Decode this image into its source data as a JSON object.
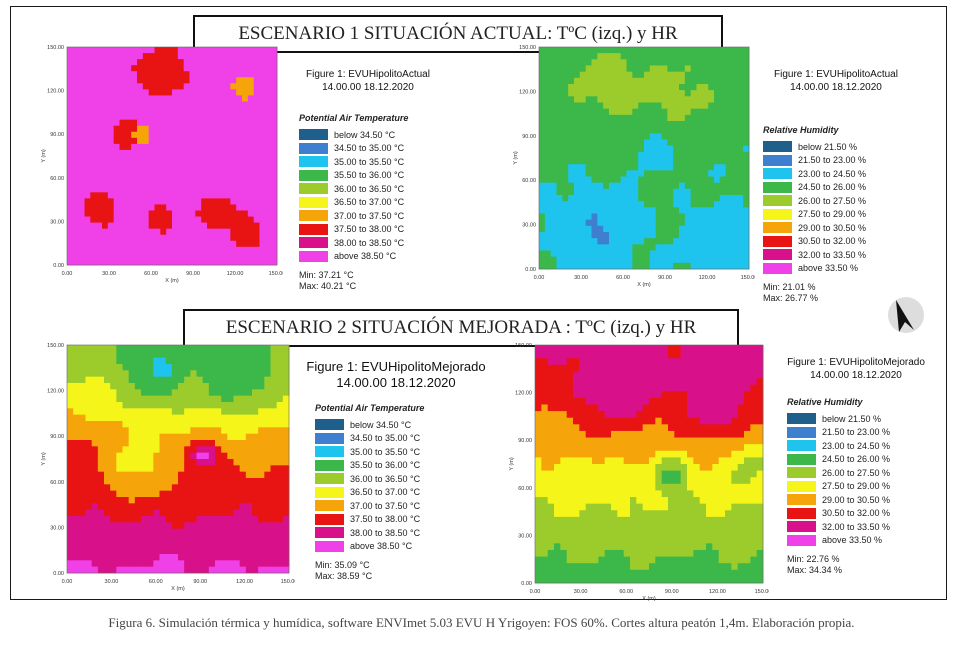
{
  "caption": "Figura 6. Simulación térmica y humídica, software ENVImet 5.03 EVU H Yrigoyen: FOS 60%. Cortes altura peatón 1,4m. Elaboración propia.",
  "scenario1": {
    "banner": "ESCENARIO 1 SITUACIÓN ACTUAL: TºC (izq.) y HR",
    "temp": {
      "title_line1": "Figure 1: EVUHipolitoActual",
      "title_line2": "14.00.00 18.12.2020",
      "legend_title": "Potential Air Temperature",
      "min": "Min: 37.21 °C",
      "max": "Max: 40.21 °C"
    },
    "hum": {
      "title_line1": "Figure 1: EVUHipolitoActual",
      "title_line2": "14.00.00 18.12.2020",
      "legend_title": "Relative Humidity",
      "min": "Min: 21.01 %",
      "max": "Max: 26.77 %"
    }
  },
  "scenario2": {
    "banner": "ESCENARIO 2 SITUACIÓN MEJORADA : TºC (izq.) y HR",
    "temp": {
      "title_line1": "Figure 1: EVUHipolitoMejorado",
      "title_line2": "14.00.00 18.12.2020",
      "legend_title": "Potential Air Temperature",
      "min": "Min: 35.09 °C",
      "max": "Max: 38.59 °C"
    },
    "hum": {
      "title_line1": "Figure 1: EVUHipolitoMejorado",
      "title_line2": "14.00.00 18.12.2020",
      "legend_title": "Relative Humidity",
      "min": "Min: 22.76 %",
      "max": "Max: 34.34 %"
    }
  },
  "legend_colors": [
    "#1f5f8b",
    "#3f7fd0",
    "#1ec3ee",
    "#3cb84a",
    "#9ccc2c",
    "#f5f51a",
    "#f5a50a",
    "#e81414",
    "#d8108a",
    "#f040e8"
  ],
  "temp_classes": [
    "below 34.50 °C",
    "34.50 to 35.00 °C",
    "35.00 to 35.50 °C",
    "35.50 to 36.00 °C",
    "36.00 to 36.50 °C",
    "36.50 to 37.00 °C",
    "37.00 to 37.50 °C",
    "37.50 to 38.00 °C",
    "38.00 to 38.50 °C",
    "above 38.50 °C"
  ],
  "hum_classes": [
    "below 21.50 %",
    "21.50 to 23.00 %",
    "23.00 to 24.50 %",
    "24.50 to 26.00 %",
    "26.00 to 27.50 %",
    "27.50 to 29.00 %",
    "29.00 to 30.50 %",
    "30.50 to 32.00 %",
    "32.00 to 33.50 %",
    "above 33.50 %"
  ],
  "axes": {
    "x_ticks": [
      "0.00",
      "30.00",
      "60.00",
      "90.00",
      "120.00",
      "150.00"
    ],
    "y_ticks": [
      "0.00",
      "30.00",
      "60.00",
      "90.00",
      "120.00",
      "150.00"
    ],
    "x_label": "X (m)",
    "y_label": "Y (m)"
  }
}
